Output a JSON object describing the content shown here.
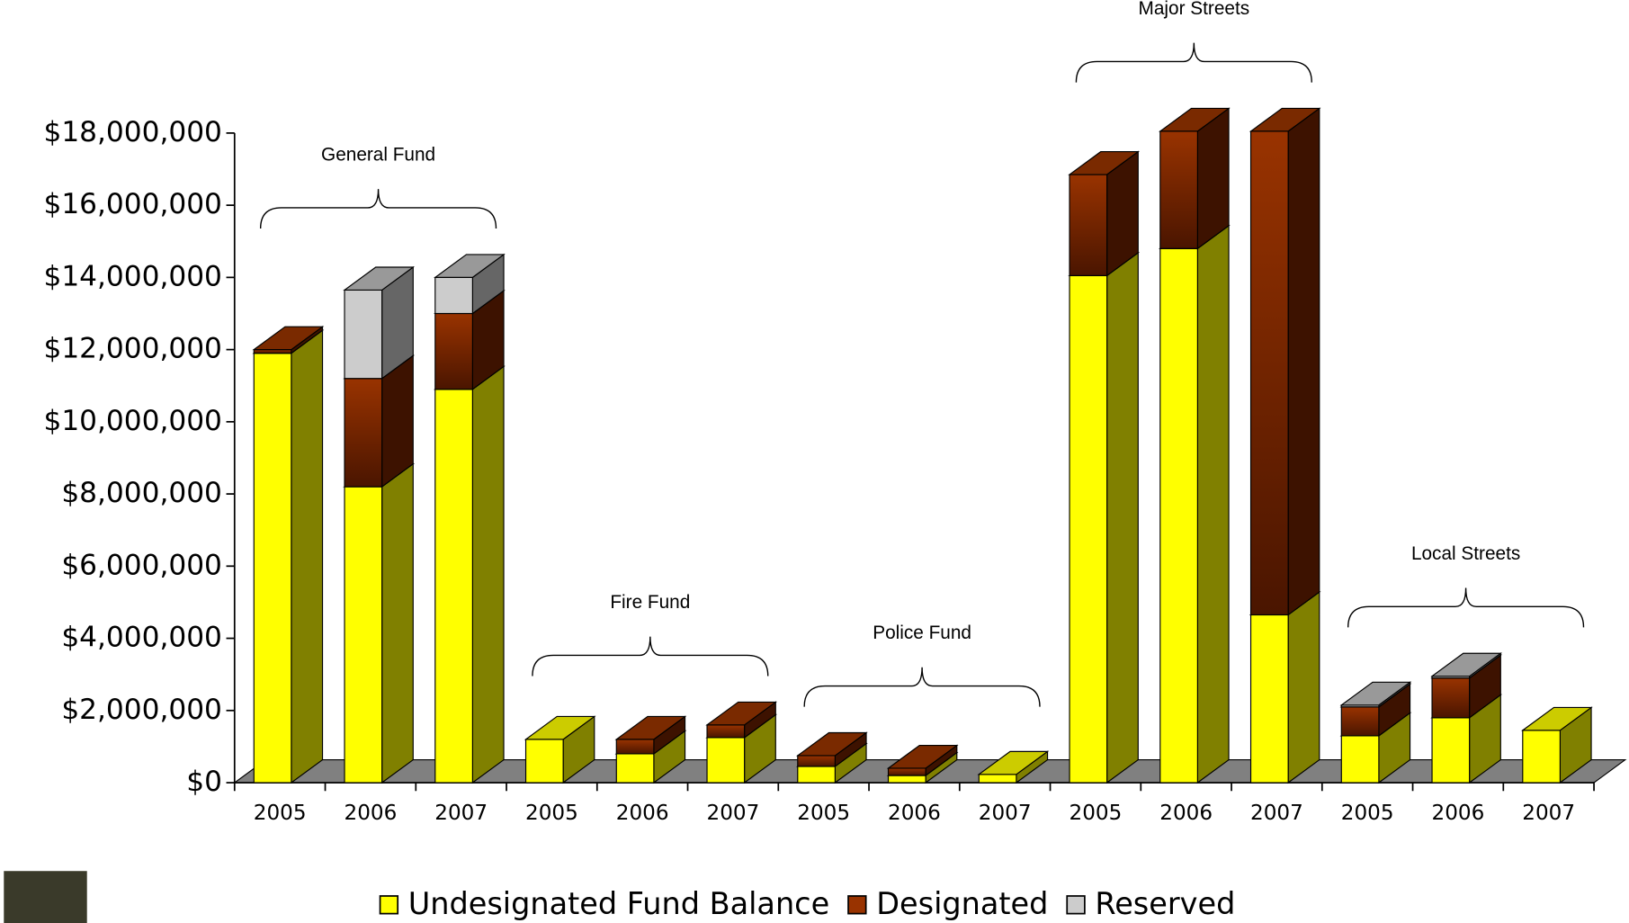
{
  "chart_data": {
    "type": "bar3d_stacked",
    "categories": [
      "2005",
      "2006",
      "2007",
      "2005",
      "2006",
      "2007",
      "2005",
      "2006",
      "2007",
      "2005",
      "2006",
      "2007",
      "2005",
      "2006",
      "2007"
    ],
    "groups": [
      {
        "label": "General  Fund",
        "start": 0,
        "end": 2
      },
      {
        "label": "Fire Fund",
        "start": 3,
        "end": 5
      },
      {
        "label": "Police Fund",
        "start": 6,
        "end": 8
      },
      {
        "label": "Major Streets",
        "start": 9,
        "end": 11
      },
      {
        "label": "Local Streets",
        "start": 12,
        "end": 14
      }
    ],
    "series": [
      {
        "name": "Undesignated Fund Balance",
        "color": "#ffff00",
        "side": "#808000",
        "values": [
          11900000,
          8200000,
          10900000,
          1200000,
          800000,
          1250000,
          450000,
          200000,
          230000,
          14050000,
          14800000,
          4650000,
          1300000,
          1800000,
          1450000
        ]
      },
      {
        "name": "Designated",
        "color": "#993300",
        "side": "#3d1200",
        "values": [
          100000,
          3000000,
          2100000,
          0,
          400000,
          350000,
          300000,
          200000,
          0,
          2800000,
          3250000,
          13400000,
          800000,
          1100000,
          0
        ]
      },
      {
        "name": "Reserved",
        "color": "#cccccc",
        "side": "#666666",
        "values": [
          0,
          2450000,
          1000000,
          0,
          0,
          0,
          0,
          0,
          0,
          0,
          0,
          0,
          50000,
          50000,
          0
        ]
      }
    ],
    "ylim": [
      0,
      18000000
    ],
    "yticks": [
      {
        "value": 0,
        "label": "$0"
      },
      {
        "value": 2000000,
        "label": "$2,000,000"
      },
      {
        "value": 4000000,
        "label": "$4,000,000"
      },
      {
        "value": 6000000,
        "label": "$6,000,000"
      },
      {
        "value": 8000000,
        "label": "$8,000,000"
      },
      {
        "value": 10000000,
        "label": "$10,000,000"
      },
      {
        "value": 12000000,
        "label": "$12,000,000"
      },
      {
        "value": 14000000,
        "label": "$14,000,000"
      },
      {
        "value": 16000000,
        "label": "$16,000,000"
      },
      {
        "value": 18000000,
        "label": "$18,000,000"
      }
    ],
    "floor_color": "#808080"
  }
}
